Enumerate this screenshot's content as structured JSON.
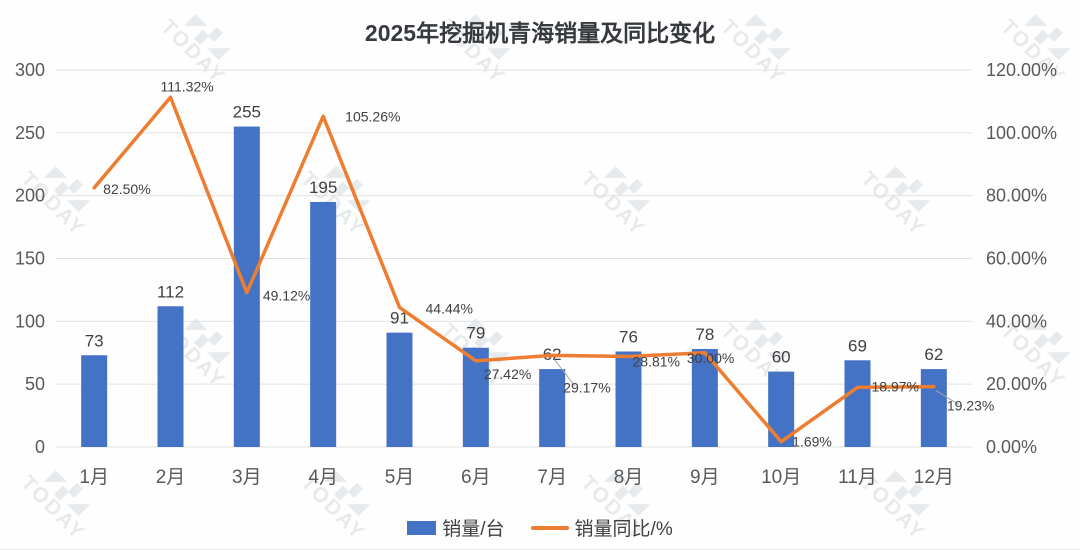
{
  "title": "2025年挖掘机青海销量及同比变化",
  "watermark": {
    "text": "TODAY",
    "icon": "watermark-logo"
  },
  "colors": {
    "bar": "#4472C4",
    "line": "#ED7D31",
    "grid": "#e2e2e2",
    "axis_text": "#595959",
    "label_text": "#404040",
    "title_text": "#363a3f",
    "leader": "#a6a6a6",
    "background": "#fefefe"
  },
  "legend": [
    {
      "label": "销量/台",
      "swatch": "blue-bar"
    },
    {
      "label": "销量同比/%",
      "swatch": "orange-line"
    }
  ],
  "chart_data": {
    "type": "bar",
    "subtype": "combo-bar-line",
    "title": "2025年挖掘机青海销量及同比变化",
    "categories": [
      "1月",
      "2月",
      "3月",
      "4月",
      "5月",
      "6月",
      "7月",
      "8月",
      "9月",
      "10月",
      "11月",
      "12月"
    ],
    "series": [
      {
        "name": "销量/台",
        "type": "bar",
        "axis": "left",
        "values": [
          73,
          112,
          255,
          195,
          91,
          79,
          62,
          76,
          78,
          60,
          69,
          62
        ],
        "labels": [
          "73",
          "112",
          "255",
          "195",
          "91",
          "79",
          "62",
          "76",
          "78",
          "60",
          "69",
          "62"
        ]
      },
      {
        "name": "销量同比/%",
        "type": "line",
        "axis": "right",
        "values": [
          82.5,
          111.32,
          49.12,
          105.26,
          44.44,
          27.42,
          29.17,
          28.81,
          30.0,
          1.69,
          18.97,
          19.23
        ],
        "labels": [
          "82.50%",
          "111.32%",
          "49.12%",
          "105.26%",
          "44.44%",
          "27.42%",
          "29.17%",
          "28.81%",
          "30.00%",
          "1.69%",
          "18.97%",
          "19.23%"
        ]
      }
    ],
    "left_axis": {
      "min": 0,
      "max": 300,
      "ticks": [
        "0",
        "50",
        "100",
        "150",
        "200",
        "250",
        "300"
      ]
    },
    "right_axis": {
      "min": 0,
      "max": 120,
      "ticks": [
        "0.00%",
        "20.00%",
        "40.00%",
        "60.00%",
        "80.00%",
        "100.00%",
        "120.00%"
      ]
    },
    "grid": true,
    "legend_position": "bottom"
  }
}
